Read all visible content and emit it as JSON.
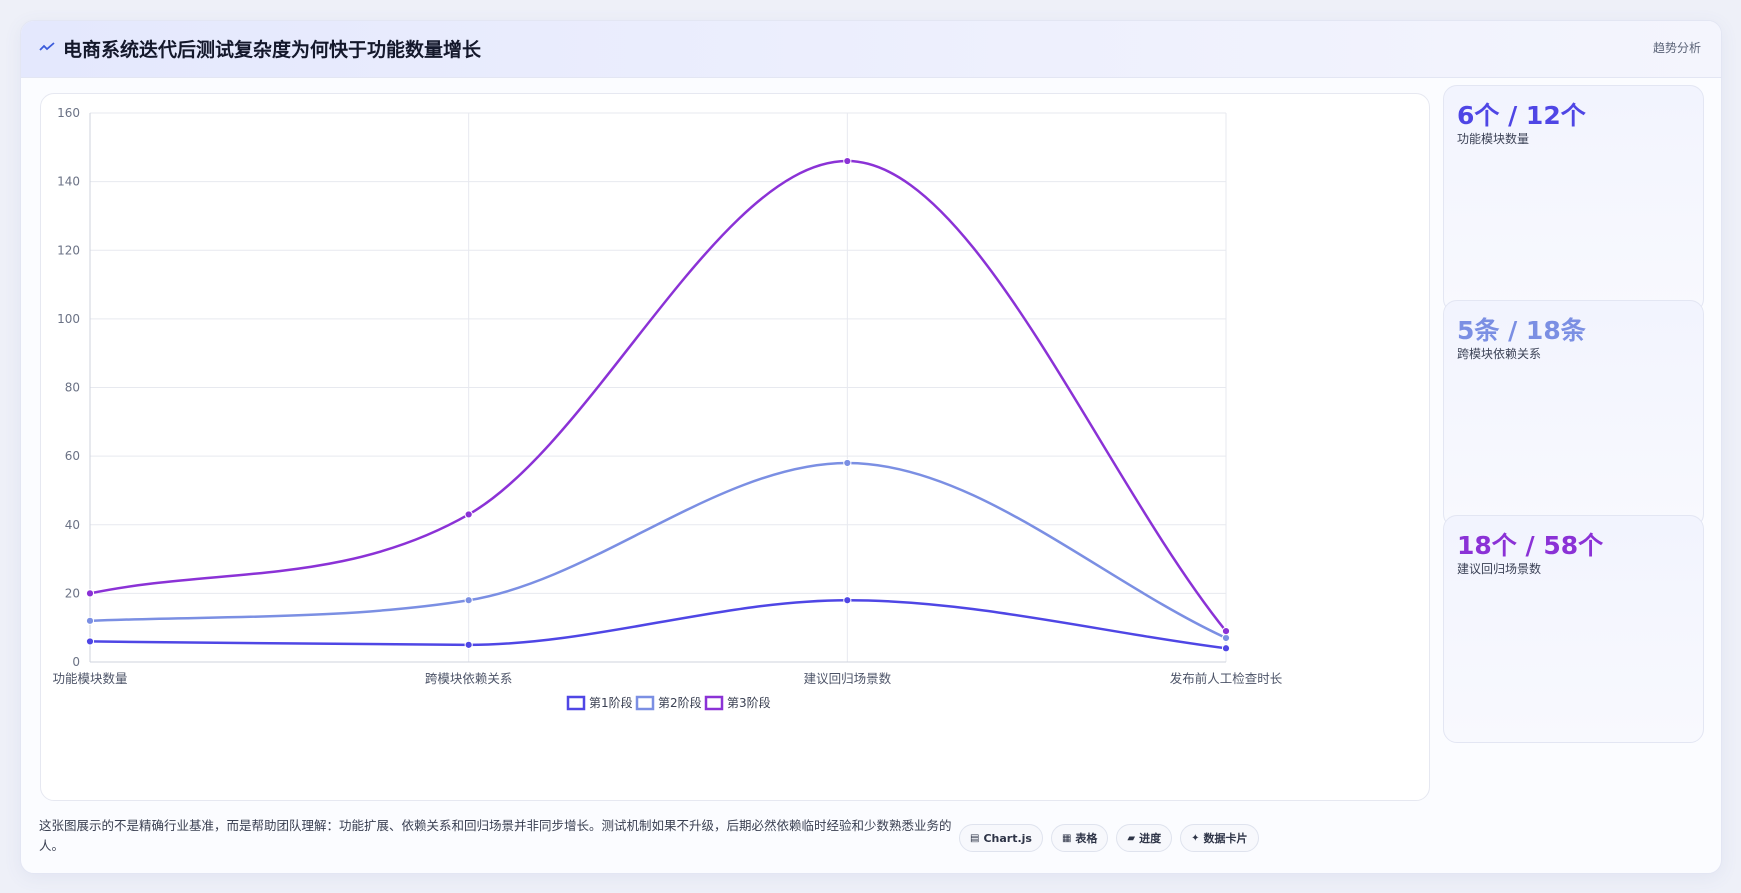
{
  "header": {
    "icon": "trend-line-icon",
    "title": "电商系统迭代后测试复杂度为何快于功能数量增长",
    "action_label": "趋势分析"
  },
  "chart_data": {
    "type": "line",
    "categories": [
      "功能模块数量",
      "跨模块依赖关系",
      "建议回归场景数",
      "发布前人工检查时长"
    ],
    "series": [
      {
        "name": "第1阶段",
        "values": [
          6,
          5,
          18,
          4
        ],
        "color": "#4f46e5"
      },
      {
        "name": "第2阶段",
        "values": [
          12,
          18,
          58,
          7
        ],
        "color": "#7b8fe3"
      },
      {
        "name": "第3阶段",
        "values": [
          20,
          43,
          146,
          9
        ],
        "color": "#8b32d6"
      }
    ],
    "ylim": [
      0,
      160
    ],
    "yticks": [
      0,
      20,
      40,
      60,
      80,
      100,
      120,
      140,
      160
    ],
    "grid": true,
    "legend_position": "bottom",
    "smooth": true
  },
  "stats": [
    {
      "value": "6个 / 12个",
      "label": "功能模块数量",
      "color": "#4f46e5"
    },
    {
      "value": "5条 / 18条",
      "label": "跨模块依赖关系",
      "color": "#7b8fe3"
    },
    {
      "value": "18个 / 58个",
      "label": "建议回归场景数",
      "color": "#8b32d6"
    }
  ],
  "footer": {
    "description": "这张图展示的不是精确行业基准，而是帮助团队理解：功能扩展、依赖关系和回归场景并非同步增长。测试机制如果不升级，后期必然依赖临时经验和少数熟悉业务的人。",
    "pills": [
      {
        "icon": "chart-icon",
        "label": "Chart.js"
      },
      {
        "icon": "table-icon",
        "label": "表格"
      },
      {
        "icon": "progress-icon",
        "label": "进度"
      },
      {
        "icon": "sparkle-icon",
        "label": "数据卡片"
      }
    ]
  }
}
